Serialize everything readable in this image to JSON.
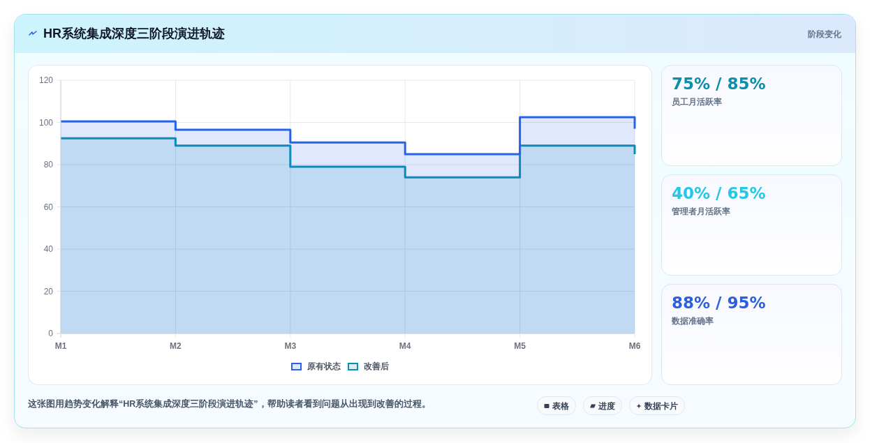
{
  "chart_data": [
    {
      "type": "step",
      "title": "HR系统集成深度三阶段演进轨迹",
      "annotations": [
        "这张图用趋势变化解释“HR系统集成深度三阶段演进轨迹”，帮助读者看到问题从出现到改善的过程。",
        "表格",
        "进度",
        "数据卡片"
      ],
      "categories": [
        "M1",
        "M2",
        "M3",
        "M4",
        "M5",
        "M6"
      ],
      "series": [
        {
          "name": "原有状态",
          "type": "area",
          "color": "#2563eb",
          "values": [
            100.5,
            96.5,
            90.5,
            85,
            102.5,
            97
          ]
        },
        {
          "name": "改善后",
          "type": "area",
          "color": "#0891b2",
          "values": [
            92.5,
            89,
            79,
            74,
            89,
            85
          ]
        }
      ],
      "ylim": [
        0,
        120
      ],
      "yticks": [
        0,
        20,
        40,
        60,
        80,
        100,
        120
      ],
      "grid": true,
      "legend": "bottom"
    },
    {
      "type": "other",
      "title": "阶段变化",
      "annotations": [
        "75% / 85%",
        "员工月活跃率",
        "40% / 65%",
        "管理者月活跃率",
        "88% / 95%",
        "数据准确率"
      ],
      "colors": [
        "#0e8fa8",
        "#22c8e5",
        "#2a5fe0"
      ]
    }
  ]
}
